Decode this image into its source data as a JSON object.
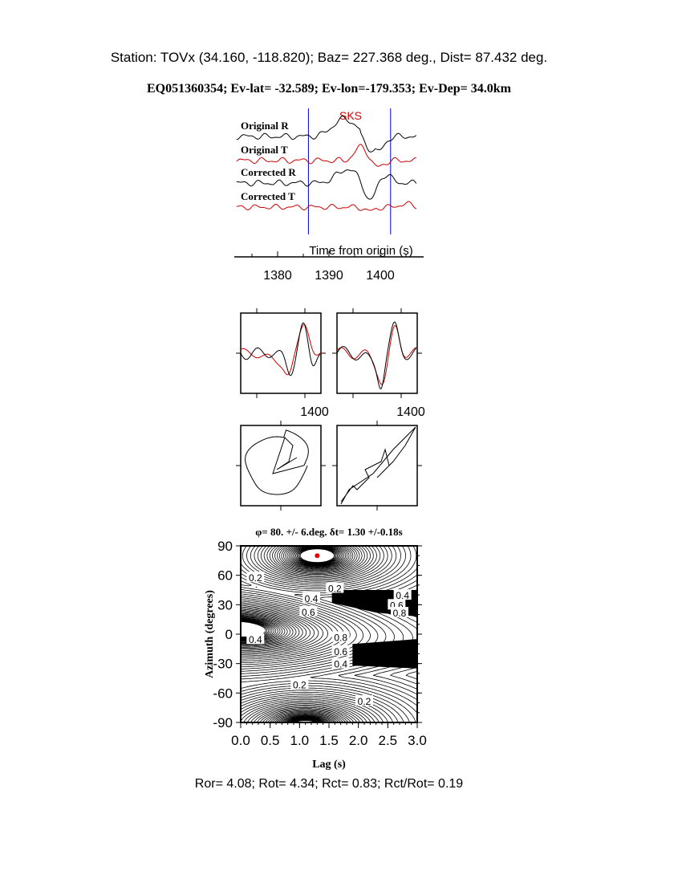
{
  "header": {
    "station_line": "Station: TOVx (34.160, -118.820); Baz=  227.368 deg., Dist=   87.432 deg.",
    "event_line": "EQ051360354; Ev-lat= -32.589; Ev-lon=-179.353; Ev-Dep= 34.0km"
  },
  "colors": {
    "radial": "#000000",
    "transverse": "#cc0000",
    "window": "#0000cc",
    "phase": "#dd0000"
  },
  "chart_data": [
    {
      "type": "line",
      "title": "",
      "phase_label": "SKS",
      "traces": [
        {
          "label": "Original R",
          "color": "#000000"
        },
        {
          "label": "Original T",
          "color": "#cc0000"
        },
        {
          "label": "Corrected R",
          "color": "#000000"
        },
        {
          "label": "Corrected T",
          "color": "#cc0000"
        }
      ],
      "xlabel": "Time from origin (s)",
      "xticks": [
        "1380",
        "1390",
        "1400"
      ],
      "xlim": [
        1372,
        1407
      ],
      "window": [
        1386,
        1402
      ]
    },
    {
      "type": "line",
      "panels": [
        {
          "xtick": "1400",
          "series": [
            "R",
            "T"
          ]
        },
        {
          "xtick": "1400",
          "series": [
            "R",
            "T"
          ]
        }
      ]
    },
    {
      "type": "scatter",
      "panels": [
        {
          "content": "particle motion original"
        },
        {
          "content": "particle motion corrected"
        }
      ]
    },
    {
      "type": "contour",
      "title": "φ= 80. +/- 6.deg. δt= 1.30 +/-0.18s",
      "xlabel": "Lag (s)",
      "ylabel": "Azimuth (degrees)",
      "xlim": [
        0,
        3.0
      ],
      "ylim": [
        -90,
        90
      ],
      "xticks": [
        "0.0",
        "0.5",
        "1.0",
        "1.5",
        "2.0",
        "2.5",
        "3.0"
      ],
      "yticks": [
        "90",
        "60",
        "30",
        "0",
        "-30",
        "-60",
        "-90"
      ],
      "best_fit": {
        "lag": 1.3,
        "azimuth": 80
      },
      "contour_labels": [
        {
          "text": "0.2",
          "lag": 0.25,
          "az": 58
        },
        {
          "text": "0.2",
          "lag": 1.6,
          "az": 47
        },
        {
          "text": "0.4",
          "lag": 1.2,
          "az": 37
        },
        {
          "text": "0.6",
          "lag": 1.15,
          "az": 23
        },
        {
          "text": "0.4",
          "lag": 2.75,
          "az": 40
        },
        {
          "text": "0.6",
          "lag": 2.65,
          "az": 30
        },
        {
          "text": "0.8",
          "lag": 2.7,
          "az": 22
        },
        {
          "text": "0.4",
          "lag": 0.25,
          "az": -5
        },
        {
          "text": "0.8",
          "lag": 1.7,
          "az": -3
        },
        {
          "text": "0.6",
          "lag": 1.7,
          "az": -17
        },
        {
          "text": "0.4",
          "lag": 1.7,
          "az": -30
        },
        {
          "text": "0.2",
          "lag": 1.0,
          "az": -51
        },
        {
          "text": "0.2",
          "lag": 2.1,
          "az": -68
        }
      ]
    }
  ],
  "footer": {
    "ratios": "Ror= 4.08; Rot= 4.34; Rct= 0.83; Rct/Rot= 0.19"
  }
}
